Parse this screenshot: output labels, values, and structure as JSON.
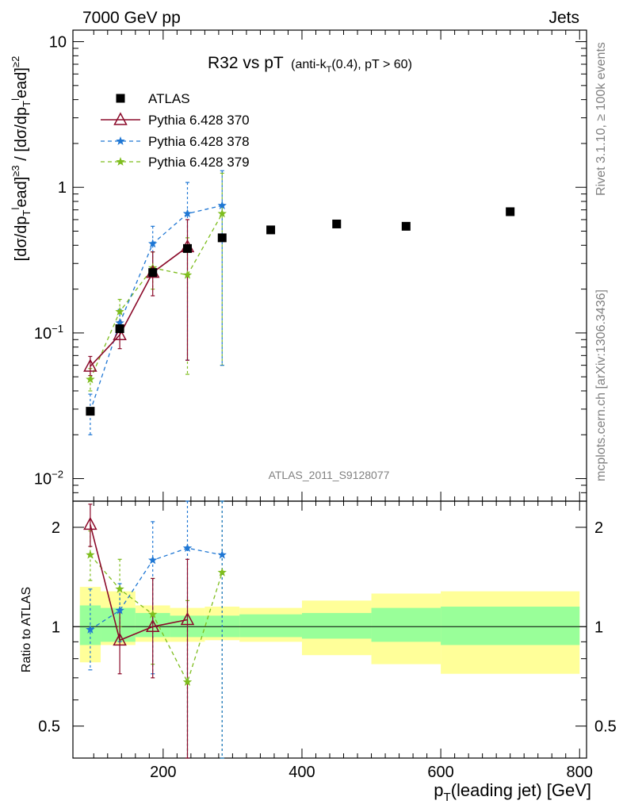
{
  "header": {
    "left": "7000 GeV pp",
    "right": "Jets",
    "plot_title_main": "R32 vs pT",
    "plot_title_sub": "(anti-k",
    "plot_title_sub_T": "T",
    "plot_title_sub_rest": "(0.4), pT > 60)"
  },
  "side_labels": {
    "rivet": "Rivet 3.1.10, ≥ 100k events",
    "mcplots": "mcplots.cern.ch [arXiv:1306.3436]"
  },
  "analysis_label": "ATLAS_2011_S9128077",
  "chart_data": [
    {
      "type": "scatter",
      "panel": "main",
      "title": "R32 vs pT (anti-kT(0.4), pT > 60)",
      "ylabel": "[dσ/dp_T^lead]^{≥3} / [dσ/dp_T^lead]^{≥2}",
      "xlabel": "p_T(leading jet) [GeV]",
      "x_scale": "linear",
      "y_scale": "log",
      "xlim": [
        70,
        810
      ],
      "ylim": [
        0.007,
        12
      ],
      "y_ticks": [
        "10^{-2}",
        "10^{-1}",
        "1",
        "10"
      ],
      "x_ticks": [
        200,
        400,
        600,
        800
      ],
      "legend_position": "top-left",
      "series": [
        {
          "name": "ATLAS",
          "marker": "square",
          "color": "#000000",
          "x": [
            95,
            137.5,
            185,
            235,
            285,
            355,
            450,
            550,
            700
          ],
          "y": [
            0.029,
            0.107,
            0.26,
            0.38,
            0.45,
            0.51,
            0.56,
            0.54,
            0.68
          ]
        },
        {
          "name": "Pythia 6.428 370",
          "marker": "triangle-open",
          "line": "solid",
          "color": "#8b0a2a",
          "x": [
            95,
            137.5,
            185,
            235
          ],
          "y": [
            0.059,
            0.097,
            0.26,
            0.39
          ],
          "err_low": [
            0.051,
            0.078,
            0.18,
            0.065
          ],
          "err_high": [
            0.069,
            0.12,
            0.36,
            0.6
          ]
        },
        {
          "name": "Pythia 6.428 378",
          "marker": "star",
          "line": "dashed",
          "color": "#1f77d4",
          "x": [
            95,
            137.5,
            185,
            235,
            285
          ],
          "y": [
            0.029,
            0.117,
            0.41,
            0.66,
            0.75
          ],
          "err_low": [
            0.02,
            0.09,
            0.25,
            0.065,
            0.06
          ],
          "err_high": [
            0.038,
            0.145,
            0.54,
            1.08,
            1.3
          ]
        },
        {
          "name": "Pythia 6.428 379",
          "marker": "star",
          "line": "dashed",
          "color": "#7ebd1e",
          "x": [
            95,
            137.5,
            185,
            235,
            285
          ],
          "y": [
            0.048,
            0.14,
            0.28,
            0.25,
            0.66
          ],
          "err_low": [
            0.04,
            0.11,
            0.2,
            0.052,
            0.06
          ],
          "err_high": [
            0.057,
            0.17,
            0.36,
            0.45,
            1.25
          ]
        }
      ]
    },
    {
      "type": "scatter",
      "panel": "ratio",
      "ylabel": "Ratio to ATLAS",
      "xlabel": "p_T(leading jet) [GeV]",
      "x_scale": "linear",
      "y_scale": "log",
      "xlim": [
        70,
        810
      ],
      "ylim": [
        0.4,
        2.4
      ],
      "y_ticks": [
        0.5,
        1,
        2
      ],
      "x_ticks": [
        200,
        400,
        600,
        800
      ],
      "bands": {
        "bins": [
          [
            80,
            110
          ],
          [
            110,
            160
          ],
          [
            160,
            210
          ],
          [
            210,
            260
          ],
          [
            260,
            310
          ],
          [
            310,
            400
          ],
          [
            400,
            500
          ],
          [
            500,
            600
          ],
          [
            600,
            800
          ]
        ],
        "stat_low": [
          0.88,
          0.9,
          0.93,
          0.93,
          0.93,
          0.93,
          0.92,
          0.9,
          0.88
        ],
        "stat_high": [
          1.16,
          1.14,
          1.1,
          1.08,
          1.08,
          1.09,
          1.1,
          1.14,
          1.15
        ],
        "total_low": [
          0.78,
          0.88,
          0.9,
          0.9,
          0.91,
          0.9,
          0.82,
          0.77,
          0.72
        ],
        "total_high": [
          1.32,
          1.28,
          1.16,
          1.14,
          1.15,
          1.14,
          1.2,
          1.26,
          1.28
        ]
      },
      "series": [
        {
          "name": "Pythia 6.428 370",
          "color": "#8b0a2a",
          "x": [
            95,
            137.5,
            185,
            235
          ],
          "y": [
            2.04,
            0.91,
            1.0,
            1.05
          ],
          "err_low": [
            1.75,
            0.72,
            0.7,
            0.17
          ],
          "err_high": [
            2.35,
            1.12,
            1.4,
            1.6
          ]
        },
        {
          "name": "Pythia 6.428 378",
          "color": "#1f77d4",
          "x": [
            95,
            137.5,
            185,
            235,
            285
          ],
          "y": [
            0.98,
            1.12,
            1.59,
            1.73,
            1.65
          ],
          "err_low": [
            0.74,
            0.9,
            0.72,
            0.17,
            0.13
          ],
          "err_high": [
            1.3,
            1.35,
            2.08,
            2.8,
            2.9
          ]
        },
        {
          "name": "Pythia 6.428 379",
          "color": "#7ebd1e",
          "x": [
            95,
            137.5,
            185,
            235,
            285
          ],
          "y": [
            1.65,
            1.3,
            1.09,
            0.68,
            1.46
          ],
          "err_low": [
            1.38,
            1.0,
            0.77,
            0.14,
            0.13
          ],
          "err_high": [
            1.95,
            1.6,
            1.4,
            1.2,
            2.8
          ]
        }
      ]
    }
  ]
}
